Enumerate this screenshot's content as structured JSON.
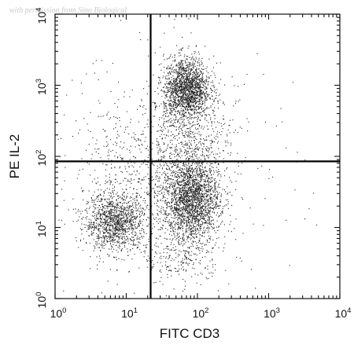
{
  "watermark": "with permission from Sino Biological",
  "chart_data": {
    "type": "scatter",
    "title": "",
    "xlabel": "FITC CD3",
    "ylabel": "PE IL-2",
    "xscale": "log",
    "yscale": "log",
    "xlim": [
      1,
      10000
    ],
    "ylim": [
      1,
      10000
    ],
    "x_ticks": [
      {
        "base": "10",
        "exp": "0",
        "value": 1
      },
      {
        "base": "10",
        "exp": "1",
        "value": 10
      },
      {
        "base": "10",
        "exp": "2",
        "value": 100
      },
      {
        "base": "10",
        "exp": "3",
        "value": 1000
      },
      {
        "base": "10",
        "exp": "4",
        "value": 10000
      }
    ],
    "y_ticks": [
      {
        "base": "10",
        "exp": "0",
        "value": 1
      },
      {
        "base": "10",
        "exp": "1",
        "value": 10
      },
      {
        "base": "10",
        "exp": "2",
        "value": 100
      },
      {
        "base": "10",
        "exp": "3",
        "value": 1000
      },
      {
        "base": "10",
        "exp": "4",
        "value": 10000
      }
    ],
    "gates": {
      "x": 22,
      "y": 85
    },
    "populations": [
      {
        "center": [
          7,
          12
        ],
        "spread": [
          0.22,
          0.2
        ],
        "points": 1300
      },
      {
        "center": [
          80,
          25
        ],
        "spread": [
          0.2,
          0.3
        ],
        "points": 2200
      },
      {
        "center": [
          70,
          900
        ],
        "spread": [
          0.16,
          0.22
        ],
        "points": 1700
      },
      {
        "center": [
          70,
          150
        ],
        "spread": [
          0.3,
          0.45
        ],
        "points": 700
      },
      {
        "center": [
          10,
          80
        ],
        "spread": [
          0.4,
          0.45
        ],
        "points": 300
      },
      {
        "center": [
          60,
          4
        ],
        "spread": [
          0.28,
          0.2
        ],
        "points": 250
      },
      {
        "center": [
          40,
          60
        ],
        "spread": [
          0.9,
          0.9
        ],
        "points": 350
      }
    ],
    "grid": false,
    "legend": "none",
    "colors": {
      "points": "#222222",
      "gates": "#000000",
      "frame": "#111111"
    }
  }
}
